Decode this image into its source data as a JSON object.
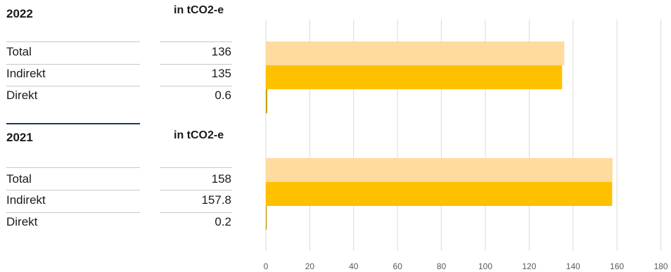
{
  "table": {
    "unit_label": "in tCO2-e",
    "groups": [
      {
        "year": "2022",
        "rows": [
          {
            "label": "Total",
            "value": "136"
          },
          {
            "label": "Indirekt",
            "value": "135"
          },
          {
            "label": "Direkt",
            "value": "0.6"
          }
        ]
      },
      {
        "year": "2021",
        "rows": [
          {
            "label": "Total",
            "value": "158"
          },
          {
            "label": "Indirekt",
            "value": "157.8"
          },
          {
            "label": "Direkt",
            "value": "0.2"
          }
        ]
      }
    ]
  },
  "chart_data": {
    "type": "bar",
    "orientation": "horizontal",
    "xlim": [
      0,
      180
    ],
    "x_ticks": [
      0,
      20,
      40,
      60,
      80,
      100,
      120,
      140,
      160,
      180
    ],
    "grid": true,
    "groups": [
      {
        "year": "2022",
        "bars": [
          {
            "category": "Total",
            "value": 136
          },
          {
            "category": "Indirekt",
            "value": 135
          },
          {
            "category": "Direkt",
            "value": 0.6
          }
        ]
      },
      {
        "year": "2021",
        "bars": [
          {
            "category": "Total",
            "value": 158
          },
          {
            "category": "Indirekt",
            "value": 157.8
          },
          {
            "category": "Direkt",
            "value": 0.2
          }
        ]
      }
    ],
    "colors": {
      "Total": "#ffdb9e",
      "Indirekt": "#ffc000",
      "Direkt": "#c59a00"
    }
  }
}
